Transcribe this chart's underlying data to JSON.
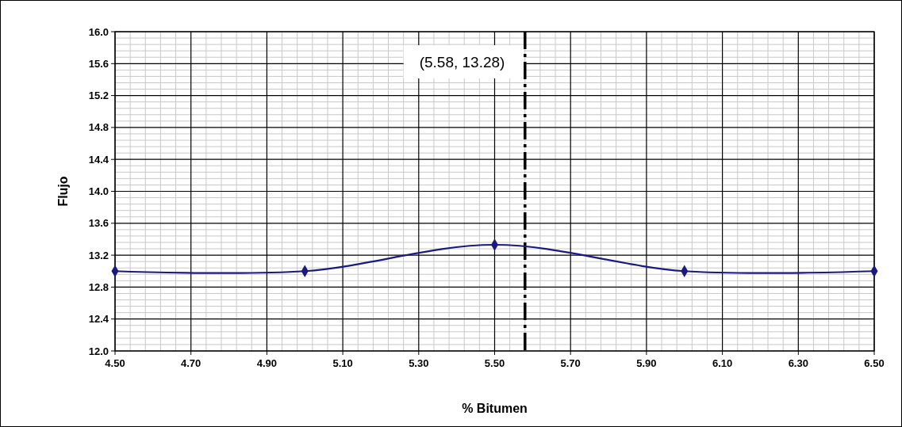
{
  "chart_data": {
    "type": "line",
    "xlabel": "% Bitumen",
    "ylabel": "Flujo",
    "x": [
      4.5,
      5.0,
      5.5,
      6.0,
      6.5
    ],
    "series": [
      {
        "color": "#1a1a80",
        "values": [
          13.0,
          13.0,
          13.33,
          13.0,
          13.0
        ]
      }
    ],
    "xlim": [
      4.5,
      6.5
    ],
    "xticks": [
      {
        "value": 4.5,
        "label": "4.50"
      },
      {
        "value": 4.7,
        "label": "4.70"
      },
      {
        "value": 4.9,
        "label": "4.90"
      },
      {
        "value": 5.1,
        "label": "5.10"
      },
      {
        "value": 5.3,
        "label": "5.30"
      },
      {
        "value": 5.5,
        "label": "5.50"
      },
      {
        "value": 5.7,
        "label": "5.70"
      },
      {
        "value": 5.9,
        "label": "5.90"
      },
      {
        "value": 6.1,
        "label": "6.10"
      },
      {
        "value": 6.3,
        "label": "6.30"
      },
      {
        "value": 6.5,
        "label": "6.50"
      }
    ],
    "ylim": [
      12.0,
      16.0
    ],
    "yticks": [
      {
        "value": 12.0,
        "label": "12.0"
      },
      {
        "value": 12.4,
        "label": "12.4"
      },
      {
        "value": 12.8,
        "label": "12.8"
      },
      {
        "value": 13.2,
        "label": "13.2"
      },
      {
        "value": 13.6,
        "label": "13.6"
      },
      {
        "value": 14.0,
        "label": "14.0"
      },
      {
        "value": 14.4,
        "label": "14.4"
      },
      {
        "value": 14.8,
        "label": "14.8"
      },
      {
        "value": 15.2,
        "label": "15.2"
      },
      {
        "value": 15.6,
        "label": "15.6"
      },
      {
        "value": 16.0,
        "label": "16.0"
      }
    ],
    "grid": true,
    "marker": "diamond",
    "line_style": "solid",
    "ref_lines": [
      {
        "axis": "x",
        "value": 5.58,
        "color": "#000000",
        "line_style": "dashed"
      }
    ],
    "annotations": [
      "(5.58, 13.28)"
    ]
  }
}
